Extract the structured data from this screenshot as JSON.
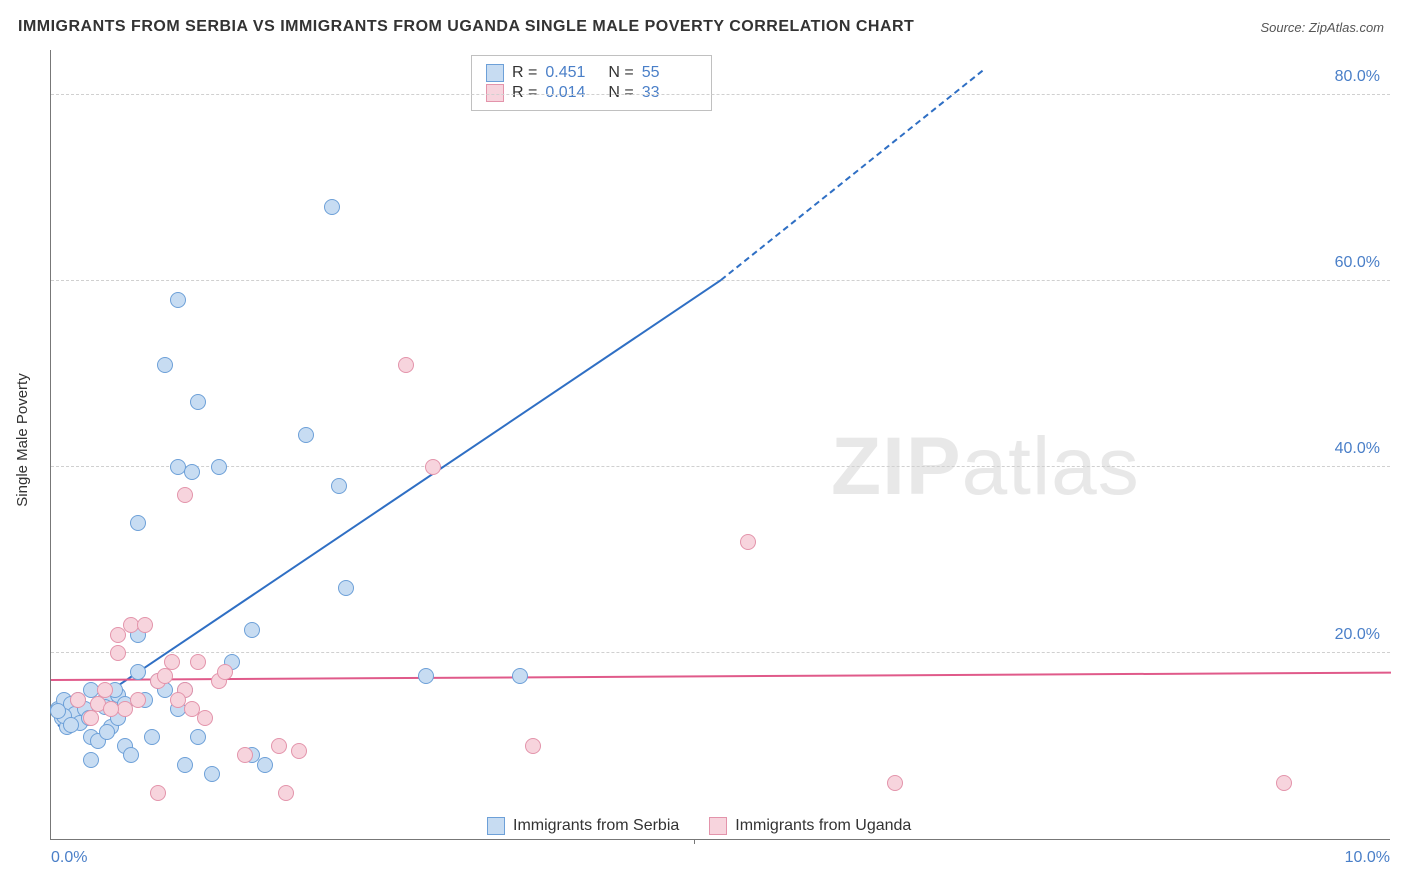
{
  "title": "IMMIGRANTS FROM SERBIA VS IMMIGRANTS FROM UGANDA SINGLE MALE POVERTY CORRELATION CHART",
  "source": "Source: ZipAtlas.com",
  "y_axis_label": "Single Male Poverty",
  "watermark": {
    "bold": "ZIP",
    "rest": "atlas"
  },
  "chart": {
    "type": "scatter",
    "background_color": "#ffffff",
    "grid_color": "#d0d0d0",
    "axis_color": "#777777",
    "tick_label_color": "#4a7fc8",
    "tick_fontsize": 16,
    "title_fontsize": 16,
    "xlim": [
      0,
      10
    ],
    "ylim": [
      0,
      85
    ],
    "y_ticks": [
      20,
      40,
      60,
      80
    ],
    "y_tick_labels": [
      "20.0%",
      "40.0%",
      "60.0%",
      "80.0%"
    ],
    "x_ticks": [
      0,
      5,
      10
    ],
    "x_tick_labels": [
      "0.0%",
      "",
      "10.0%"
    ],
    "x_minor_tick": 4.8,
    "point_radius": 8,
    "series": [
      {
        "name": "Immigrants from Serbia",
        "fill": "#c7dcf2",
        "stroke": "#6da0d8",
        "line_color": "#2f6fc4",
        "R": "0.451",
        "N": "55",
        "trend": {
          "x0": 0.05,
          "y0": 12.0,
          "x1": 5.0,
          "y1": 60.0,
          "dash_to_x": 6.95,
          "dash_to_y": 82.5
        },
        "points": [
          [
            0.05,
            14
          ],
          [
            0.08,
            13
          ],
          [
            0.1,
            15
          ],
          [
            0.12,
            12
          ],
          [
            0.15,
            14.5
          ],
          [
            0.18,
            13.5
          ],
          [
            0.2,
            15
          ],
          [
            0.22,
            12.5
          ],
          [
            0.25,
            14
          ],
          [
            0.28,
            13
          ],
          [
            0.3,
            11
          ],
          [
            0.3,
            16
          ],
          [
            0.35,
            10.5
          ],
          [
            0.4,
            15
          ],
          [
            0.45,
            12
          ],
          [
            0.5,
            13
          ],
          [
            0.55,
            10
          ],
          [
            0.6,
            9
          ],
          [
            0.65,
            22
          ],
          [
            0.65,
            18
          ],
          [
            0.7,
            15
          ],
          [
            0.75,
            11
          ],
          [
            0.8,
            17
          ],
          [
            0.85,
            16
          ],
          [
            0.95,
            14
          ],
          [
            1.0,
            8
          ],
          [
            1.1,
            11
          ],
          [
            1.2,
            7
          ],
          [
            1.5,
            9
          ],
          [
            1.6,
            8
          ],
          [
            0.65,
            34
          ],
          [
            0.85,
            51
          ],
          [
            0.95,
            58
          ],
          [
            0.95,
            40
          ],
          [
            1.05,
            39.5
          ],
          [
            1.1,
            47
          ],
          [
            1.25,
            40
          ],
          [
            1.35,
            19
          ],
          [
            1.5,
            22.5
          ],
          [
            1.9,
            43.5
          ],
          [
            2.1,
            68
          ],
          [
            2.15,
            38
          ],
          [
            2.2,
            27
          ],
          [
            2.8,
            17.5
          ],
          [
            3.5,
            17.5
          ],
          [
            0.4,
            14.2
          ],
          [
            0.5,
            15.5
          ],
          [
            0.1,
            13.2
          ],
          [
            0.15,
            12.3
          ],
          [
            0.05,
            13.8
          ],
          [
            0.55,
            14.5
          ],
          [
            0.3,
            8.5
          ],
          [
            0.42,
            11.5
          ],
          [
            0.48,
            16
          ],
          [
            1.0,
            16
          ]
        ]
      },
      {
        "name": "Immigrants from Uganda",
        "fill": "#f7d4dd",
        "stroke": "#e394ab",
        "line_color": "#e05a8a",
        "R": "0.014",
        "N": "33",
        "trend": {
          "x0": 0,
          "y0": 17.0,
          "x1": 10,
          "y1": 17.8
        },
        "points": [
          [
            0.2,
            15
          ],
          [
            0.3,
            13
          ],
          [
            0.4,
            16
          ],
          [
            0.5,
            22
          ],
          [
            0.55,
            14
          ],
          [
            0.6,
            23
          ],
          [
            0.7,
            23
          ],
          [
            0.8,
            17
          ],
          [
            0.85,
            17.5
          ],
          [
            0.9,
            19
          ],
          [
            1.0,
            37
          ],
          [
            1.0,
            16
          ],
          [
            1.05,
            14
          ],
          [
            1.1,
            19
          ],
          [
            1.15,
            13
          ],
          [
            1.25,
            17
          ],
          [
            1.3,
            18
          ],
          [
            1.45,
            9
          ],
          [
            1.7,
            10
          ],
          [
            1.75,
            5
          ],
          [
            1.85,
            9.5
          ],
          [
            0.8,
            5
          ],
          [
            2.65,
            51
          ],
          [
            2.85,
            40
          ],
          [
            3.6,
            10
          ],
          [
            5.2,
            32
          ],
          [
            6.3,
            6
          ],
          [
            9.2,
            6
          ],
          [
            0.35,
            14.5
          ],
          [
            0.45,
            14
          ],
          [
            0.5,
            20
          ],
          [
            0.65,
            15
          ],
          [
            0.95,
            15
          ]
        ]
      }
    ]
  },
  "legend": {
    "stats_labels": {
      "R": "R =",
      "N": "N ="
    },
    "bottom_items": [
      "Immigrants from Serbia",
      "Immigrants from Uganda"
    ]
  }
}
